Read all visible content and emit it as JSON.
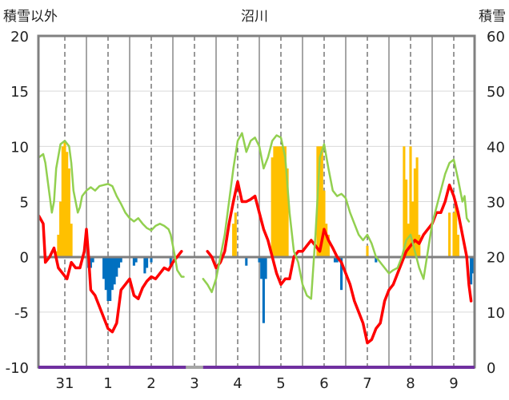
{
  "chart_data": {
    "type": "line",
    "title": "沼川",
    "left_axis_label": "積雪以外",
    "right_axis_label": "積雪",
    "left_ylim": [
      -10,
      20
    ],
    "left_ticks": [
      "20",
      "15",
      "10",
      "5",
      "0",
      "-5",
      "-10"
    ],
    "right_ylim": [
      0,
      60
    ],
    "right_ticks": [
      "60",
      "50",
      "40",
      "30",
      "20",
      "10",
      "0"
    ],
    "x_categories": [
      "31",
      "1",
      "2",
      "3",
      "4",
      "5",
      "6",
      "7",
      "8",
      "9"
    ],
    "grid": true,
    "colors": {
      "red_line": "#ff0000",
      "green_line": "#92d050",
      "orange_bars": "#ffc000",
      "blue_bars": "#0070c0",
      "zero_line": "#7f7f7f",
      "frame": "#808080",
      "bottom_bar": "#7030a0",
      "bottom_bar_gap": "#a6a6a6"
    },
    "series": [
      {
        "values": [
          [
            -0.6,
            9.0
          ],
          [
            -0.5,
            9.3
          ],
          [
            -0.45,
            8.5
          ],
          [
            -0.35,
            5.5
          ],
          [
            -0.3,
            4.0
          ],
          [
            -0.25,
            5.0
          ],
          [
            -0.2,
            8.0
          ],
          [
            -0.1,
            10.2
          ],
          [
            0.0,
            10.5
          ],
          [
            0.1,
            10.0
          ],
          [
            0.15,
            8.5
          ],
          [
            0.2,
            6.0
          ],
          [
            0.3,
            4.0
          ],
          [
            0.35,
            4.5
          ],
          [
            0.4,
            5.5
          ],
          [
            0.5,
            6.0
          ],
          [
            0.6,
            6.3
          ],
          [
            0.7,
            6.0
          ],
          [
            0.8,
            6.4
          ],
          [
            0.9,
            6.5
          ],
          [
            1.0,
            6.6
          ],
          [
            1.1,
            6.4
          ],
          [
            1.2,
            5.5
          ],
          [
            1.3,
            4.8
          ],
          [
            1.4,
            4.0
          ],
          [
            1.5,
            3.5
          ],
          [
            1.6,
            3.2
          ],
          [
            1.7,
            3.5
          ],
          [
            1.8,
            3.0
          ],
          [
            1.9,
            2.6
          ],
          [
            2.0,
            2.4
          ],
          [
            2.1,
            2.8
          ],
          [
            2.2,
            3.0
          ],
          [
            2.3,
            2.8
          ],
          [
            2.4,
            2.5
          ],
          [
            2.45,
            2.0
          ],
          [
            2.5,
            1.0
          ],
          [
            2.55,
            0.0
          ],
          [
            2.6,
            -1.2
          ],
          [
            2.7,
            -1.8
          ],
          [
            2.75,
            -1.8
          ]
        ]
      },
      {
        "values": [
          [
            3.2,
            -2.0
          ],
          [
            3.3,
            -2.5
          ],
          [
            3.4,
            -3.2
          ],
          [
            3.5,
            -2.0
          ],
          [
            3.6,
            0.0
          ],
          [
            3.7,
            2.0
          ],
          [
            3.8,
            5.0
          ],
          [
            3.9,
            8.0
          ],
          [
            4.0,
            10.5
          ],
          [
            4.1,
            11.2
          ],
          [
            4.2,
            9.5
          ],
          [
            4.3,
            10.5
          ],
          [
            4.4,
            10.8
          ],
          [
            4.5,
            10.0
          ],
          [
            4.6,
            8.0
          ],
          [
            4.7,
            9.0
          ],
          [
            4.8,
            10.5
          ],
          [
            4.9,
            11.0
          ],
          [
            5.0,
            10.8
          ],
          [
            5.1,
            9.0
          ],
          [
            5.2,
            4.0
          ],
          [
            5.3,
            0.5
          ],
          [
            5.4,
            -0.5
          ],
          [
            5.5,
            -2.5
          ],
          [
            5.6,
            -3.5
          ],
          [
            5.7,
            -3.8
          ],
          [
            5.8,
            2.0
          ],
          [
            5.9,
            9.0
          ],
          [
            6.0,
            10.2
          ],
          [
            6.1,
            8.0
          ],
          [
            6.2,
            6.0
          ],
          [
            6.3,
            5.5
          ],
          [
            6.4,
            5.7
          ],
          [
            6.5,
            5.3
          ],
          [
            6.6,
            4.0
          ],
          [
            6.7,
            3.0
          ],
          [
            6.8,
            2.0
          ],
          [
            6.9,
            1.5
          ],
          [
            7.0,
            2.0
          ],
          [
            7.1,
            1.2
          ],
          [
            7.2,
            0.0
          ],
          [
            7.3,
            -0.5
          ],
          [
            7.4,
            -1.0
          ],
          [
            7.5,
            -1.5
          ],
          [
            7.6,
            -1.2
          ],
          [
            7.7,
            -1.0
          ],
          [
            7.8,
            0.0
          ],
          [
            7.9,
            1.5
          ],
          [
            8.0,
            2.0
          ],
          [
            8.1,
            0.5
          ],
          [
            8.2,
            -1.0
          ],
          [
            8.3,
            -2.0
          ],
          [
            8.4,
            0.5
          ],
          [
            8.5,
            3.0
          ],
          [
            8.6,
            4.5
          ],
          [
            8.7,
            6.0
          ],
          [
            8.8,
            7.5
          ],
          [
            8.9,
            8.5
          ],
          [
            9.0,
            8.8
          ],
          [
            9.1,
            7.0
          ],
          [
            9.2,
            5.0
          ],
          [
            9.25,
            5.5
          ],
          [
            9.3,
            3.5
          ],
          [
            9.35,
            3.2
          ]
        ]
      },
      {
        "values": [
          [
            -0.6,
            3.7
          ],
          [
            -0.5,
            3.0
          ],
          [
            -0.45,
            -0.5
          ],
          [
            -0.35,
            0.0
          ],
          [
            -0.25,
            0.8
          ],
          [
            -0.15,
            -1.0
          ],
          [
            -0.05,
            -1.5
          ],
          [
            0.05,
            -2.0
          ],
          [
            0.15,
            -0.5
          ],
          [
            0.25,
            -1.0
          ],
          [
            0.35,
            -1.0
          ],
          [
            0.45,
            0.5
          ],
          [
            0.5,
            2.5
          ],
          [
            0.55,
            0.0
          ],
          [
            0.6,
            -3.0
          ],
          [
            0.7,
            -3.5
          ],
          [
            0.8,
            -4.5
          ],
          [
            0.9,
            -5.5
          ],
          [
            1.0,
            -6.5
          ],
          [
            1.1,
            -6.8
          ],
          [
            1.2,
            -6.0
          ],
          [
            1.3,
            -3.0
          ],
          [
            1.4,
            -2.5
          ],
          [
            1.5,
            -2.0
          ],
          [
            1.6,
            -3.5
          ],
          [
            1.7,
            -3.8
          ],
          [
            1.8,
            -2.8
          ],
          [
            1.9,
            -2.2
          ],
          [
            2.0,
            -1.8
          ],
          [
            2.1,
            -2.0
          ],
          [
            2.2,
            -1.5
          ],
          [
            2.3,
            -1.0
          ],
          [
            2.4,
            -1.2
          ],
          [
            2.5,
            -0.5
          ],
          [
            2.6,
            0.0
          ],
          [
            2.7,
            0.5
          ]
        ]
      },
      {
        "values": [
          [
            3.3,
            0.5
          ],
          [
            3.4,
            0.0
          ],
          [
            3.5,
            -1.0
          ],
          [
            3.6,
            -0.5
          ],
          [
            3.7,
            0.5
          ],
          [
            3.8,
            3.0
          ],
          [
            3.9,
            5.0
          ],
          [
            4.0,
            6.8
          ],
          [
            4.1,
            5.0
          ],
          [
            4.2,
            5.0
          ],
          [
            4.3,
            5.2
          ],
          [
            4.4,
            5.5
          ],
          [
            4.5,
            4.0
          ],
          [
            4.6,
            2.5
          ],
          [
            4.7,
            1.5
          ],
          [
            4.8,
            0.0
          ],
          [
            4.9,
            -1.5
          ],
          [
            5.0,
            -2.5
          ],
          [
            5.1,
            -2.0
          ],
          [
            5.2,
            -2.0
          ],
          [
            5.3,
            0.0
          ],
          [
            5.4,
            0.5
          ],
          [
            5.5,
            0.5
          ],
          [
            5.6,
            1.0
          ],
          [
            5.7,
            1.5
          ],
          [
            5.8,
            1.0
          ],
          [
            5.9,
            0.5
          ],
          [
            6.0,
            2.5
          ],
          [
            6.1,
            1.5
          ],
          [
            6.2,
            0.8
          ],
          [
            6.3,
            0.0
          ],
          [
            6.4,
            -0.5
          ],
          [
            6.5,
            -1.5
          ],
          [
            6.6,
            -2.5
          ],
          [
            6.7,
            -4.0
          ],
          [
            6.8,
            -5.0
          ],
          [
            6.9,
            -6.0
          ],
          [
            7.0,
            -7.8
          ],
          [
            7.1,
            -7.5
          ],
          [
            7.2,
            -6.5
          ],
          [
            7.3,
            -6.0
          ],
          [
            7.4,
            -4.0
          ],
          [
            7.5,
            -3.0
          ],
          [
            7.6,
            -2.5
          ],
          [
            7.7,
            -1.5
          ],
          [
            7.8,
            -0.5
          ],
          [
            7.9,
            0.5
          ],
          [
            8.0,
            1.0
          ],
          [
            8.1,
            1.5
          ],
          [
            8.2,
            1.2
          ],
          [
            8.3,
            2.0
          ],
          [
            8.4,
            2.5
          ],
          [
            8.5,
            3.0
          ],
          [
            8.6,
            4.0
          ],
          [
            8.7,
            4.0
          ],
          [
            8.8,
            5.0
          ],
          [
            8.9,
            6.5
          ],
          [
            9.0,
            5.5
          ],
          [
            9.1,
            4.0
          ],
          [
            9.2,
            2.0
          ],
          [
            9.3,
            0.0
          ],
          [
            9.35,
            -2.5
          ],
          [
            9.4,
            -4.0
          ]
        ]
      }
    ],
    "orange_bars_right_axis": [
      [
        -0.2,
        21
      ],
      [
        -0.15,
        24
      ],
      [
        -0.1,
        30
      ],
      [
        -0.05,
        40
      ],
      [
        0.0,
        41
      ],
      [
        0.05,
        39
      ],
      [
        0.1,
        36
      ],
      [
        0.15,
        26
      ],
      [
        3.9,
        26
      ],
      [
        3.95,
        28
      ],
      [
        4.8,
        38
      ],
      [
        4.85,
        40
      ],
      [
        4.9,
        40
      ],
      [
        4.95,
        40
      ],
      [
        5.0,
        40
      ],
      [
        5.05,
        40
      ],
      [
        5.1,
        40
      ],
      [
        5.15,
        36
      ],
      [
        5.85,
        40
      ],
      [
        5.9,
        40
      ],
      [
        5.95,
        40
      ],
      [
        6.0,
        32
      ],
      [
        6.05,
        26
      ],
      [
        6.1,
        24
      ],
      [
        7.0,
        22
      ],
      [
        7.85,
        40
      ],
      [
        7.9,
        34
      ],
      [
        7.95,
        26
      ],
      [
        8.0,
        40
      ],
      [
        8.05,
        30
      ],
      [
        8.1,
        36
      ],
      [
        8.15,
        38
      ],
      [
        8.2,
        24
      ],
      [
        8.9,
        28
      ],
      [
        9.0,
        28
      ],
      [
        9.05,
        30
      ],
      [
        9.1,
        24
      ]
    ],
    "blue_bars_left_axis": [
      [
        0.55,
        -1.0
      ],
      [
        0.6,
        -1.0
      ],
      [
        0.65,
        -0.5
      ],
      [
        0.9,
        -2.0
      ],
      [
        0.95,
        -3.0
      ],
      [
        1.0,
        -4.0
      ],
      [
        1.05,
        -4.0
      ],
      [
        1.1,
        -3.0
      ],
      [
        1.15,
        -2.5
      ],
      [
        1.2,
        -1.8
      ],
      [
        1.25,
        -1.0
      ],
      [
        1.3,
        -0.5
      ],
      [
        1.6,
        -0.8
      ],
      [
        1.65,
        -0.5
      ],
      [
        1.85,
        -1.5
      ],
      [
        1.9,
        -1.0
      ],
      [
        2.0,
        -0.5
      ],
      [
        2.45,
        -0.8
      ],
      [
        4.2,
        -0.8
      ],
      [
        4.5,
        -0.5
      ],
      [
        4.55,
        -2.0
      ],
      [
        4.6,
        -6.0
      ],
      [
        4.65,
        -2.0
      ],
      [
        6.25,
        -0.5
      ],
      [
        6.3,
        -0.5
      ],
      [
        6.4,
        -3.0
      ],
      [
        7.2,
        -0.5
      ],
      [
        9.4,
        -2.5
      ],
      [
        9.45,
        -1.5
      ]
    ]
  }
}
